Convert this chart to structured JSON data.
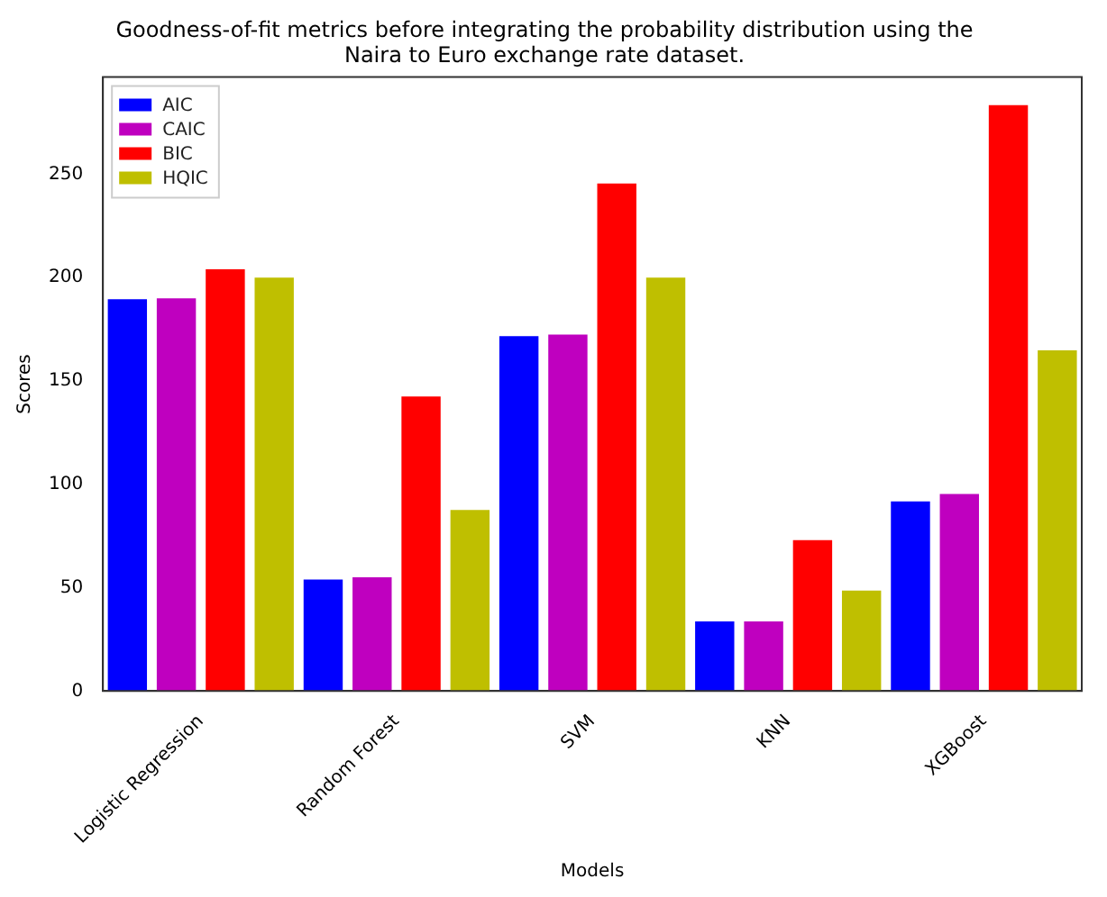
{
  "chart_data": {
    "type": "bar",
    "title": "Goodness-of-fit metrics before integrating the probability distribution using the Naira to Euro exchange rate dataset.",
    "xlabel": "Models",
    "ylabel": "Scores",
    "categories": [
      "Logistic Regression",
      "Random Forest",
      "SVM",
      "KNN",
      "XGBoost"
    ],
    "series": [
      {
        "name": "AIC",
        "color": "#0000ff",
        "values": [
          189.5,
          54,
          171.7,
          33.7,
          91.8
        ]
      },
      {
        "name": "CAIC",
        "color": "#bf00bf",
        "values": [
          190,
          55,
          172.5,
          33.7,
          95.3
        ]
      },
      {
        "name": "BIC",
        "color": "#ff0000",
        "values": [
          204,
          142.5,
          245.5,
          73,
          283.4
        ]
      },
      {
        "name": "HQIC",
        "color": "#bfbf00",
        "values": [
          200,
          87.6,
          200,
          48.6,
          164.8
        ]
      }
    ],
    "ylim": [
      0,
      297
    ],
    "yticks": [
      0,
      50,
      100,
      150,
      200,
      250
    ],
    "grid": false,
    "legend": "top left"
  }
}
